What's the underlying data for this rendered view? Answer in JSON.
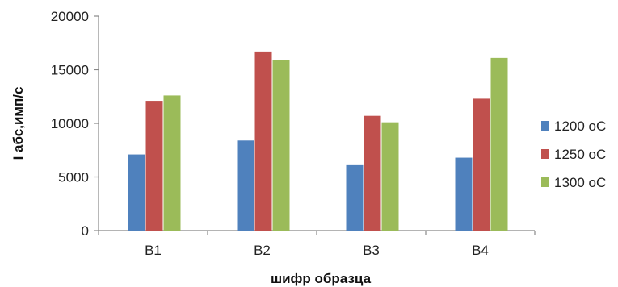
{
  "chart_data": {
    "type": "bar",
    "title": "",
    "xlabel": "шифр образца",
    "ylabel": "I абс,имп/с",
    "categories": [
      "B1",
      "B2",
      "B3",
      "B4"
    ],
    "ylim": [
      0,
      20000
    ],
    "yticks": [
      "0",
      "5000",
      "10000",
      "15000",
      "20000"
    ],
    "grid": false,
    "legend_position": "right",
    "series": [
      {
        "name": "1200 оС",
        "color": "#4f81bd",
        "values": [
          7100,
          8400,
          6100,
          6800
        ]
      },
      {
        "name": "1250 оС",
        "color": "#c0504d",
        "values": [
          12100,
          16700,
          10700,
          12300
        ]
      },
      {
        "name": "1300 оС",
        "color": "#9bbb59",
        "values": [
          12600,
          15900,
          10100,
          16100
        ]
      }
    ]
  }
}
